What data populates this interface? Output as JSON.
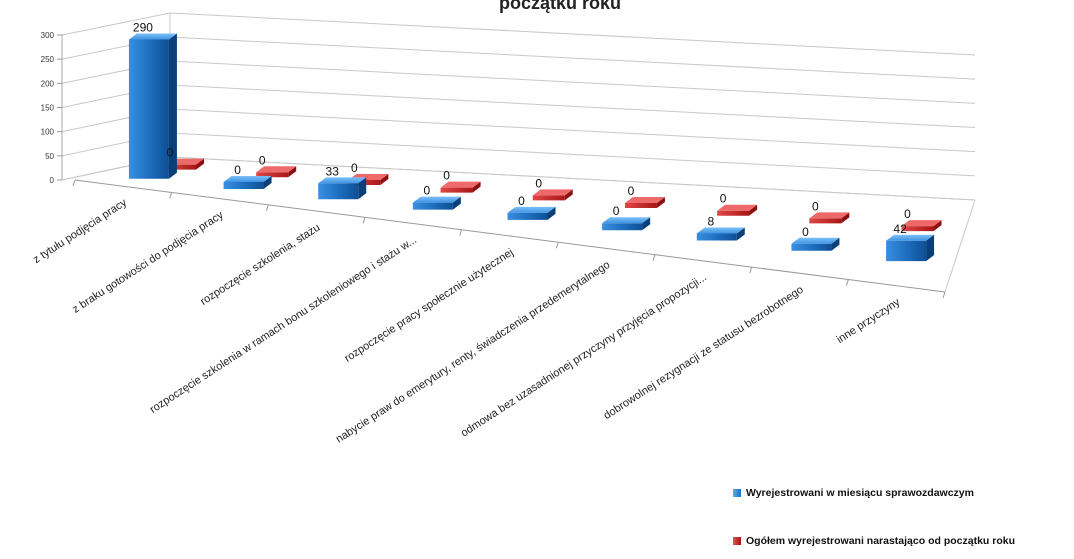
{
  "chart_data": {
    "type": "bar",
    "title": "początku roku",
    "categories": [
      "z tytułu podjęcia pracy",
      "z braku gotowości do podjęcia pracy",
      "rozpoczęcie szkolenia, stażu",
      "rozpoczęcie szkolenia w ramach bonu szkoleniowego i stażu w...",
      "rozpoczęcie pracy społecznie użytecznej",
      "nabycie praw do emerytury, renty, świadczenia przedemerytalnego",
      "odmowa bez uzasadnionej przyczyny przyjęcia propozycji...",
      "dobrowolnej rezygnacji ze statusu bezrobotnego",
      "inne przyczyny"
    ],
    "series": [
      {
        "name": "Wyrejestrowani w miesiącu sprawozdawczym",
        "values": [
          290,
          0,
          33,
          0,
          0,
          0,
          8,
          0,
          42
        ],
        "color": "#1f6fc0"
      },
      {
        "name": "Ogółem wyrejestrowani narastająco od początku roku",
        "values": [
          0,
          0,
          0,
          0,
          0,
          0,
          0,
          0,
          0
        ],
        "color": "#d02424"
      }
    ],
    "ylim": [
      0,
      300
    ],
    "yticks": [
      0,
      50,
      100,
      150,
      200,
      250,
      300
    ],
    "grid": true,
    "legend_position": "bottom-right"
  }
}
